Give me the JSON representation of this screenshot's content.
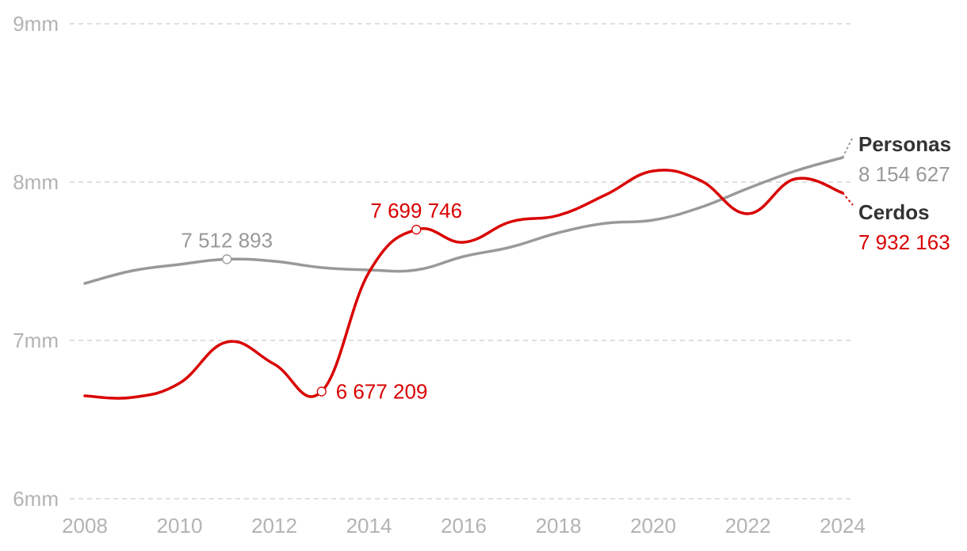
{
  "chart_data": {
    "type": "line",
    "x": [
      2008,
      2009,
      2010,
      2011,
      2012,
      2013,
      2014,
      2015,
      2016,
      2017,
      2018,
      2019,
      2020,
      2021,
      2022,
      2023,
      2024
    ],
    "x_ticks": [
      "2008",
      "2010",
      "2012",
      "2014",
      "2016",
      "2018",
      "2020",
      "2022",
      "2024"
    ],
    "y_ticks": [
      "6mm",
      "7mm",
      "8mm",
      "9mm"
    ],
    "ylim": [
      6000000,
      9000000
    ],
    "grid": true,
    "series": [
      {
        "name": "Personas",
        "color": "#999999",
        "value_color": "#999999",
        "end_label": "8 154 627",
        "values": [
          7360000,
          7440000,
          7480000,
          7512893,
          7500000,
          7460000,
          7445000,
          7445000,
          7530000,
          7590000,
          7680000,
          7740000,
          7760000,
          7840000,
          7960000,
          8070000,
          8154627
        ]
      },
      {
        "name": "Cerdos",
        "color": "#d90000",
        "value_color": "#d90000",
        "end_label": "7 932 163",
        "values": [
          6650000,
          6640000,
          6730000,
          6990000,
          6850000,
          6677209,
          7430000,
          7699746,
          7620000,
          7750000,
          7790000,
          7920000,
          8070000,
          8010000,
          7800000,
          8020000,
          7932163
        ]
      }
    ],
    "annotations": [
      {
        "series": "Personas",
        "x": 2011,
        "value": 7512893,
        "label": "7 512 893",
        "position": "above"
      },
      {
        "series": "Cerdos",
        "x": 2015,
        "value": 7699746,
        "label": "7 699 746",
        "position": "above"
      },
      {
        "series": "Cerdos",
        "x": 2013,
        "value": 6677209,
        "label": "6 677 209",
        "position": "right"
      }
    ]
  }
}
